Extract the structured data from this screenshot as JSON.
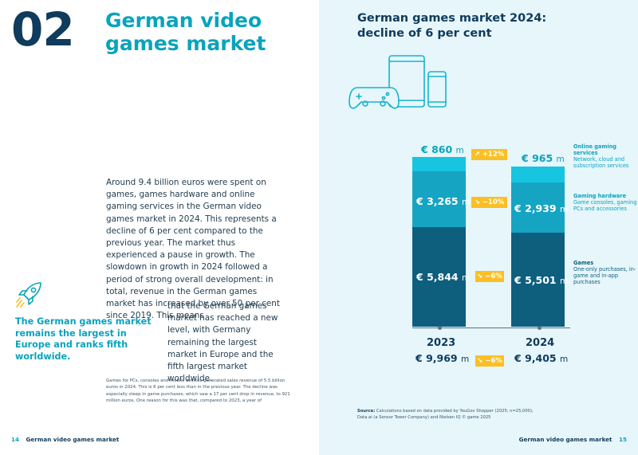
{
  "left": {
    "chapter_number": "02",
    "chapter_title": "German video games market",
    "body_text_1": "Around 9.4 billion euros were spent on games, games hardware and online gaming services in the German video games market in 2024. This represents a decline of 6 per cent compared to the previous year. The market thus experienced a pause in growth. The slowdown in growth in 2024 followed a period of strong overall development: in total, revenue in the German games market has increased by over 50 per cent since 2019. This means",
    "body_text_2": "that the German games market has reached a new level, with Germany remaining the largest market in Europe and the fifth largest market worldwide.",
    "callout": "The German games market remains the largest in Europe and ranks fifth worldwide.",
    "footnote": "Games for PCs, consoles and mobile devices generated sales revenue of 5.5 billion euros in 2024. This is 6 per cent less than in the previous year. The decline was especially steep in game purchases, which saw a 17 per cent drop in revenue, to 921 million euros. One reason for this was that, compared to 2023, a year of",
    "footer_page": "14",
    "footer_title": "German video games market"
  },
  "right": {
    "chart_title": "German games market 2024: decline of 6 per cent",
    "footer_page": "15",
    "footer_title": "German video games market",
    "source_label": "Source:",
    "source_text": "Calculations based on data provided by YouGov Shopper (2025; n=25,000), Data.ai (a Sensor Tower Company) and Nielsen IQ © game 2025"
  },
  "chart_data": {
    "type": "bar",
    "stacked": true,
    "currency": "€",
    "unit": "m",
    "categories": [
      "2023",
      "2024"
    ],
    "series": [
      {
        "name": "Games",
        "description": "One-only purchases, in-game and in-app purchases",
        "color": "#0e5e7e",
        "values": [
          5844,
          5501
        ],
        "display": [
          "5,844",
          "5,501"
        ]
      },
      {
        "name": "Gaming hardware",
        "description": "Game consoles, gaming PCs and accessories",
        "color": "#16a4c3",
        "values": [
          3265,
          2939
        ],
        "display": [
          "3,265",
          "2,939"
        ]
      },
      {
        "name": "Online gaming services",
        "description": "Network, cloud and subscription services",
        "color": "#17c5e0",
        "values": [
          860,
          965
        ],
        "display": [
          "860",
          "965"
        ]
      }
    ],
    "totals": [
      "9,969",
      "9,405"
    ],
    "changes": {
      "online": "+12%",
      "hardware": "−10%",
      "games": "−6%",
      "total": "−6%"
    },
    "change_arrows": {
      "online": "↗",
      "hardware": "↘",
      "games": "↘",
      "total": "↘"
    },
    "badge_color": "#fbbf24"
  }
}
